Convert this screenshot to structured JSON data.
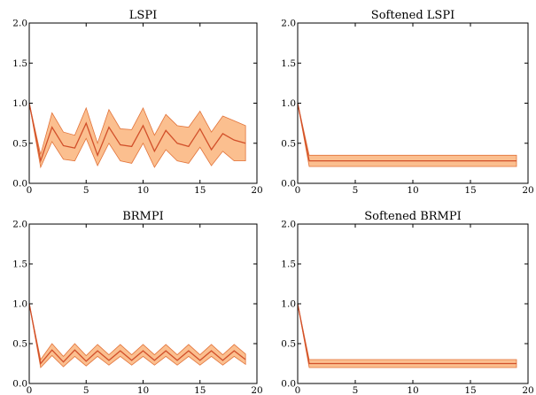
{
  "style": {
    "band_color": "#fbbf8f",
    "band_edge_color": "#e2733a",
    "line_color": "#d2502a",
    "axis_color": "#000000"
  },
  "chart_data": [
    {
      "type": "line",
      "title": "LSPI",
      "xlim": [
        0,
        20
      ],
      "ylim": [
        0.0,
        2.0
      ],
      "xticks": [
        0,
        5,
        10,
        15,
        20
      ],
      "yticks": [
        "0.0",
        "0.5",
        "1.0",
        "1.5",
        "2.0"
      ],
      "grid": false,
      "x": [
        0,
        1,
        2,
        3,
        4,
        5,
        6,
        7,
        8,
        9,
        10,
        11,
        12,
        13,
        14,
        15,
        16,
        17,
        18,
        19
      ],
      "series": [
        {
          "values": [
            1.0,
            0.28,
            0.7,
            0.47,
            0.44,
            0.75,
            0.35,
            0.7,
            0.48,
            0.46,
            0.72,
            0.4,
            0.66,
            0.5,
            0.46,
            0.68,
            0.42,
            0.62,
            0.54,
            0.5
          ],
          "lower": [
            1.0,
            0.2,
            0.52,
            0.3,
            0.28,
            0.56,
            0.22,
            0.5,
            0.28,
            0.25,
            0.5,
            0.2,
            0.42,
            0.28,
            0.25,
            0.45,
            0.22,
            0.4,
            0.28,
            0.28
          ],
          "upper": [
            1.0,
            0.36,
            0.88,
            0.64,
            0.6,
            0.94,
            0.5,
            0.92,
            0.68,
            0.67,
            0.94,
            0.6,
            0.86,
            0.72,
            0.7,
            0.9,
            0.64,
            0.84,
            0.78,
            0.72
          ]
        }
      ]
    },
    {
      "type": "line",
      "title": "Softened LSPI",
      "xlim": [
        0,
        20
      ],
      "ylim": [
        0.0,
        2.0
      ],
      "xticks": [
        0,
        5,
        10,
        15,
        20
      ],
      "yticks": [
        "0.0",
        "0.5",
        "1.0",
        "1.5",
        "2.0"
      ],
      "grid": false,
      "x": [
        0,
        1,
        2,
        3,
        4,
        5,
        6,
        7,
        8,
        9,
        10,
        11,
        12,
        13,
        14,
        15,
        16,
        17,
        18,
        19
      ],
      "series": [
        {
          "values": [
            1.0,
            0.28,
            0.28,
            0.28,
            0.28,
            0.28,
            0.28,
            0.28,
            0.28,
            0.28,
            0.28,
            0.28,
            0.28,
            0.28,
            0.28,
            0.28,
            0.28,
            0.28,
            0.28,
            0.28
          ],
          "lower": [
            1.0,
            0.21,
            0.21,
            0.21,
            0.21,
            0.21,
            0.21,
            0.21,
            0.21,
            0.21,
            0.21,
            0.21,
            0.21,
            0.21,
            0.21,
            0.21,
            0.21,
            0.21,
            0.21,
            0.21
          ],
          "upper": [
            1.0,
            0.35,
            0.35,
            0.35,
            0.35,
            0.35,
            0.35,
            0.35,
            0.35,
            0.35,
            0.35,
            0.35,
            0.35,
            0.35,
            0.35,
            0.35,
            0.35,
            0.35,
            0.35,
            0.35
          ]
        }
      ]
    },
    {
      "type": "line",
      "title": "BRMPI",
      "xlim": [
        0,
        20
      ],
      "ylim": [
        0.0,
        2.0
      ],
      "xticks": [
        0,
        5,
        10,
        15,
        20
      ],
      "yticks": [
        "0.0",
        "0.5",
        "1.0",
        "1.5",
        "2.0"
      ],
      "grid": false,
      "x": [
        0,
        1,
        2,
        3,
        4,
        5,
        6,
        7,
        8,
        9,
        10,
        11,
        12,
        13,
        14,
        15,
        16,
        17,
        18,
        19
      ],
      "series": [
        {
          "values": [
            1.0,
            0.25,
            0.42,
            0.27,
            0.42,
            0.28,
            0.41,
            0.29,
            0.41,
            0.29,
            0.41,
            0.29,
            0.41,
            0.29,
            0.41,
            0.29,
            0.41,
            0.29,
            0.41,
            0.3
          ],
          "lower": [
            1.0,
            0.2,
            0.35,
            0.21,
            0.34,
            0.22,
            0.34,
            0.23,
            0.34,
            0.23,
            0.34,
            0.23,
            0.34,
            0.23,
            0.34,
            0.23,
            0.34,
            0.23,
            0.34,
            0.24
          ],
          "upper": [
            1.0,
            0.3,
            0.5,
            0.34,
            0.5,
            0.35,
            0.49,
            0.36,
            0.49,
            0.36,
            0.49,
            0.36,
            0.49,
            0.36,
            0.49,
            0.36,
            0.49,
            0.36,
            0.49,
            0.37
          ]
        }
      ]
    },
    {
      "type": "line",
      "title": "Softened BRMPI",
      "xlim": [
        0,
        20
      ],
      "ylim": [
        0.0,
        2.0
      ],
      "xticks": [
        0,
        5,
        10,
        15,
        20
      ],
      "yticks": [
        "0.0",
        "0.5",
        "1.0",
        "1.5",
        "2.0"
      ],
      "grid": false,
      "x": [
        0,
        1,
        2,
        3,
        4,
        5,
        6,
        7,
        8,
        9,
        10,
        11,
        12,
        13,
        14,
        15,
        16,
        17,
        18,
        19
      ],
      "series": [
        {
          "values": [
            1.0,
            0.25,
            0.25,
            0.25,
            0.25,
            0.25,
            0.25,
            0.25,
            0.25,
            0.25,
            0.25,
            0.25,
            0.25,
            0.25,
            0.25,
            0.25,
            0.25,
            0.25,
            0.25,
            0.25
          ],
          "lower": [
            1.0,
            0.2,
            0.2,
            0.2,
            0.2,
            0.2,
            0.2,
            0.2,
            0.2,
            0.2,
            0.2,
            0.2,
            0.2,
            0.2,
            0.2,
            0.2,
            0.2,
            0.2,
            0.2,
            0.2
          ],
          "upper": [
            1.0,
            0.3,
            0.3,
            0.3,
            0.3,
            0.3,
            0.3,
            0.3,
            0.3,
            0.3,
            0.3,
            0.3,
            0.3,
            0.3,
            0.3,
            0.3,
            0.3,
            0.3,
            0.3,
            0.3
          ]
        }
      ]
    }
  ]
}
